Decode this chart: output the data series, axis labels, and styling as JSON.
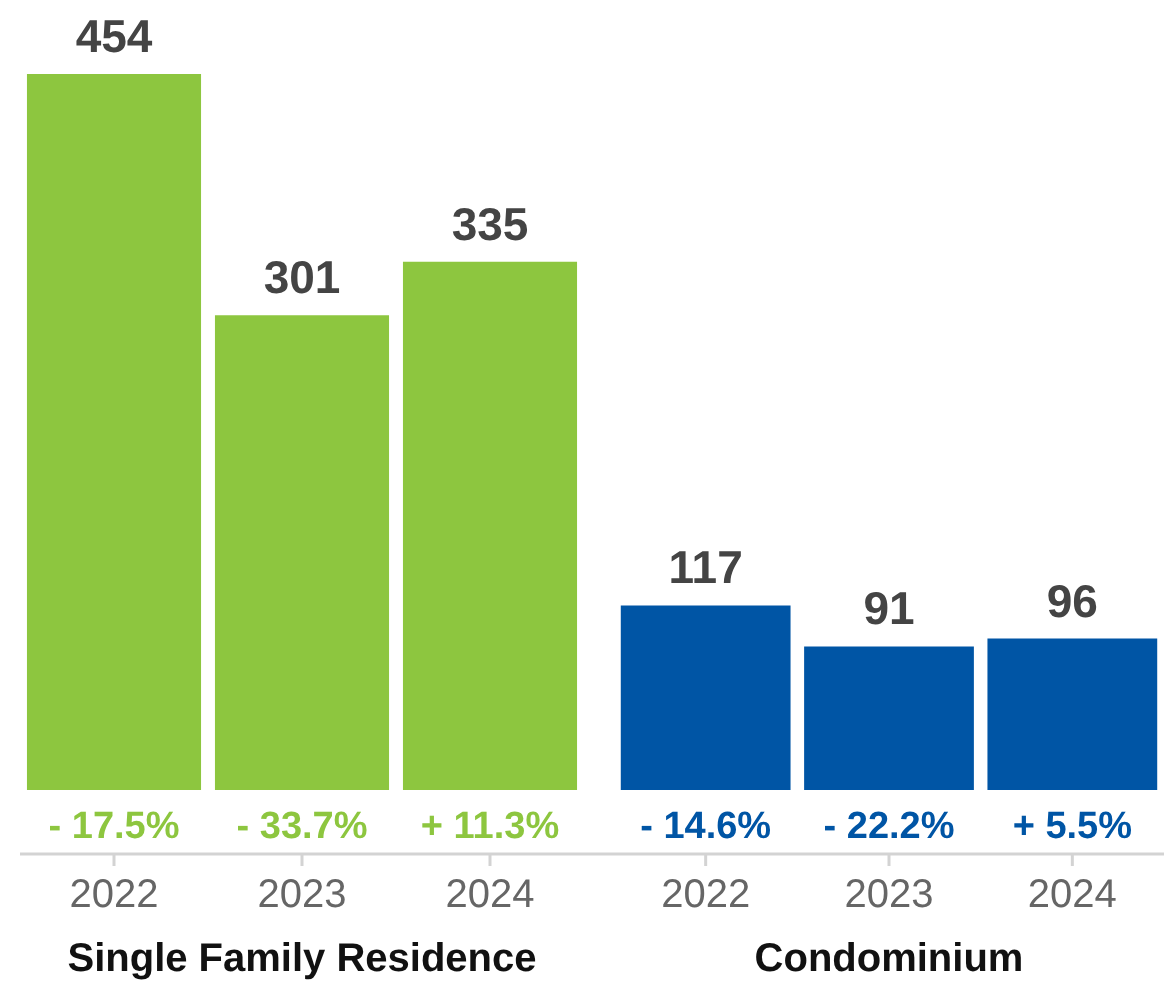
{
  "chart_data": [
    {
      "type": "bar",
      "categories": [
        "2022",
        "2023",
        "2024"
      ],
      "values": [
        454,
        301,
        335
      ],
      "color": "#8dc63f",
      "xlabel": "Single Family Residence",
      "data_labels": true,
      "tick_labels": "x",
      "annotations": [
        "- 17.5%",
        "- 33.7%",
        "+ 11.3%"
      ]
    },
    {
      "type": "bar",
      "categories": [
        "2022",
        "2023",
        "2024"
      ],
      "values": [
        117,
        91,
        96
      ],
      "color": "#0055a5",
      "xlabel": "Condominium",
      "data_labels": true,
      "tick_labels": "x",
      "annotations": [
        "- 14.6%",
        "- 22.2%",
        "+ 5.5%"
      ]
    }
  ]
}
